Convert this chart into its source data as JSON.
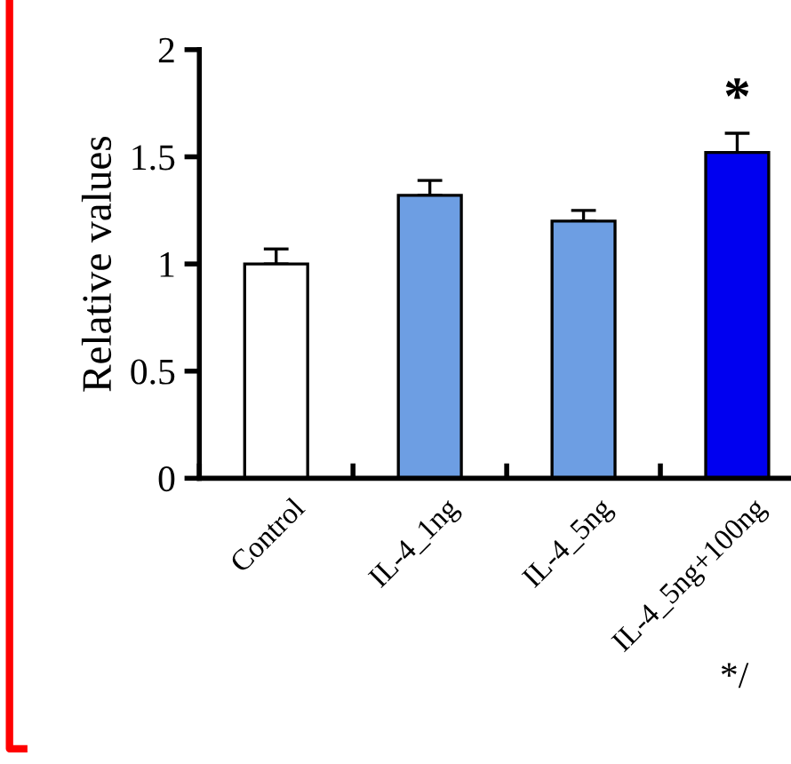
{
  "chart_data": {
    "type": "bar",
    "ylabel": "Relative values",
    "categories": [
      "Control",
      "IL-4_1ng",
      "IL-4_5ng",
      "IL-4_5ng+100ng"
    ],
    "values": [
      1.0,
      1.32,
      1.2,
      1.52
    ],
    "errors": [
      0.07,
      0.07,
      0.05,
      0.09
    ],
    "colors": [
      "#ffffff",
      "#6d9ee3",
      "#6d9ee3",
      "#0000f0"
    ],
    "ylim": [
      0,
      2
    ],
    "yticks": [
      0,
      0.5,
      1,
      1.5,
      2
    ],
    "grid": false,
    "legend": false,
    "annotations": [
      "*",
      "*/"
    ]
  }
}
